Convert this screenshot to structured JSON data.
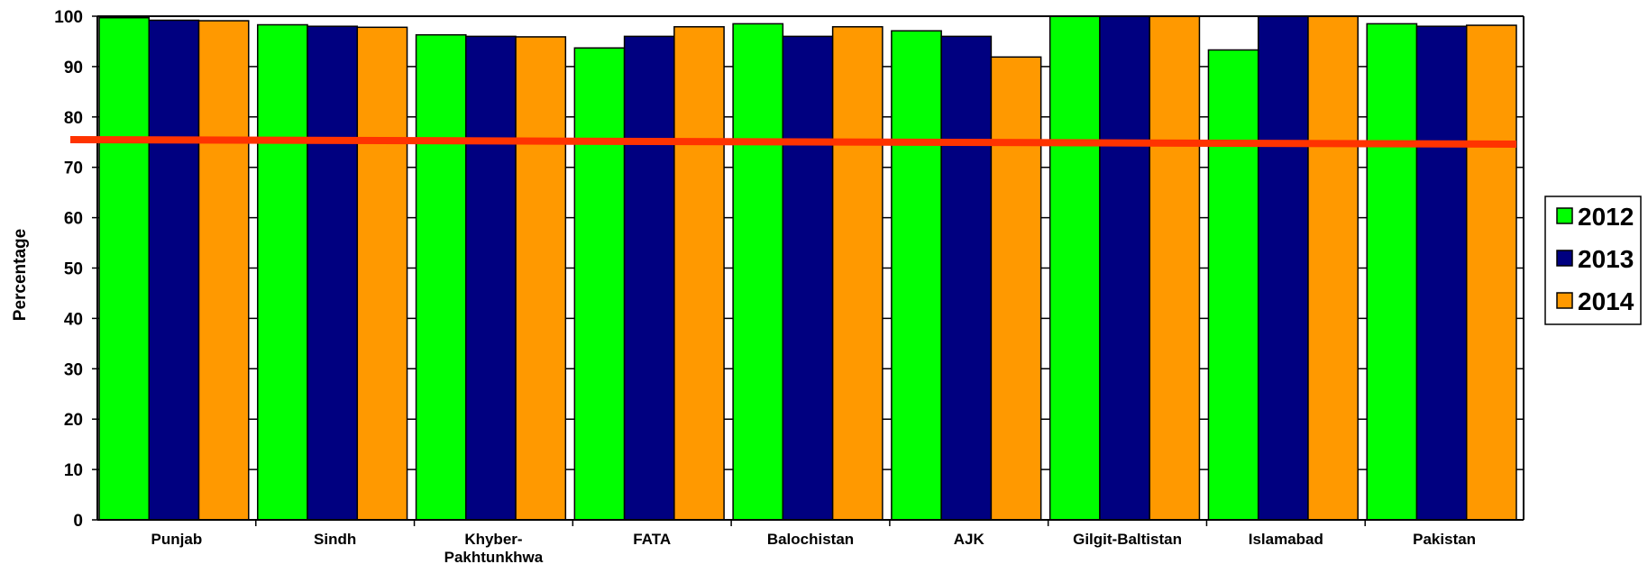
{
  "chart_data": {
    "type": "bar",
    "title": "",
    "xlabel": "",
    "ylabel": "Percentage",
    "ylim": [
      0,
      100
    ],
    "yticks": [
      0,
      10,
      20,
      30,
      40,
      50,
      60,
      70,
      80,
      90,
      100
    ],
    "grid": "horizontal",
    "legend_position": "right",
    "categories": [
      [
        "Punjab"
      ],
      [
        "Sindh"
      ],
      [
        "Khyber-",
        "Pakhtunkhwa"
      ],
      [
        "FATA"
      ],
      [
        "Balochistan"
      ],
      [
        "AJK"
      ],
      [
        "Gilgit-Baltistan"
      ],
      [
        "Islamabad"
      ],
      [
        "Pakistan"
      ]
    ],
    "series": [
      {
        "name": "2012",
        "color": "#00ff00",
        "values": [
          99.7,
          98.3,
          96.3,
          93.7,
          98.5,
          97.1,
          100,
          93.3,
          98.5
        ]
      },
      {
        "name": "2013",
        "color": "#000080",
        "values": [
          99.2,
          98.0,
          96.0,
          96.0,
          96.0,
          96.0,
          100,
          100,
          98.0
        ]
      },
      {
        "name": "2014",
        "color": "#ff9900",
        "values": [
          99.1,
          97.8,
          95.9,
          97.9,
          97.9,
          91.9,
          100,
          100,
          98.2
        ]
      }
    ],
    "reference_line": {
      "color": "#ff3300",
      "y_start": 75.5,
      "y_end": 74.6
    }
  }
}
